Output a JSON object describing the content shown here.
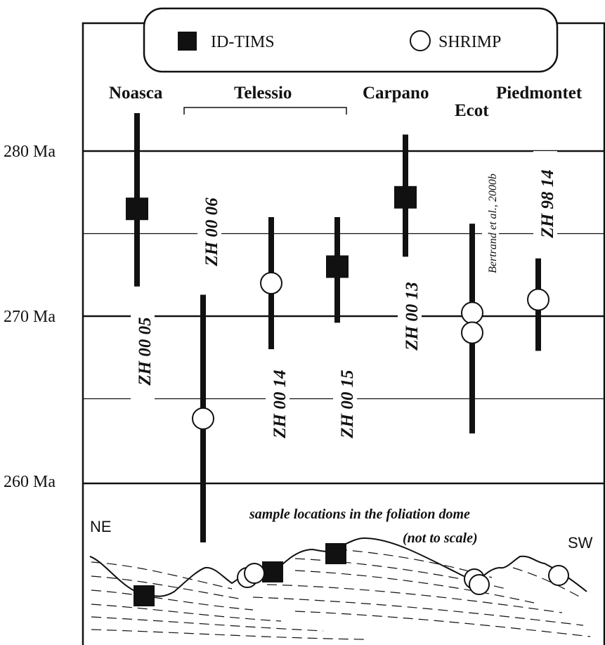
{
  "chart_data": {
    "type": "scatter",
    "title": "",
    "xlabel": "",
    "ylabel": "",
    "ylim": [
      260,
      282
    ],
    "yticks": [
      {
        "value": 280,
        "label": "280 Ma"
      },
      {
        "value": 270,
        "label": "270 Ma"
      },
      {
        "value": 260,
        "label": "260 Ma"
      }
    ],
    "grid": "horizontal lines at 265, 270, 275, 280 Ma",
    "legend": {
      "position": "top-center",
      "items": [
        {
          "name": "ID-TIMS",
          "marker": "filled-square"
        },
        {
          "name": "SHRIMP",
          "marker": "open-circle"
        }
      ]
    },
    "locations": [
      "Noasca",
      "Telessio",
      "Carpano",
      "Ecot",
      "Piedmontet"
    ],
    "series": [
      {
        "name": "ID-TIMS",
        "marker": "filled-square",
        "points": [
          {
            "sample": "ZH 00 05",
            "location": "Noasca",
            "age": 276.5,
            "low": 271.8,
            "high": 282.3
          },
          {
            "sample": "ZH 00 15",
            "location": "Telessio",
            "age": 273.0,
            "low": 269.6,
            "high": 276.0
          },
          {
            "sample": "ZH 00 13",
            "location": "Carpano",
            "age": 277.2,
            "low": 273.6,
            "high": 281.0
          }
        ]
      },
      {
        "name": "SHRIMP",
        "marker": "open-circle",
        "points": [
          {
            "sample": "ZH 00 06",
            "location": "Telessio",
            "age": 263.8,
            "low": 256.3,
            "high": 271.3
          },
          {
            "sample": "ZH 00 14",
            "location": "Telessio",
            "age": 272.0,
            "low": 268.0,
            "high": 276.0
          },
          {
            "sample": "Bertrand et al., 2000b",
            "location": "Ecot",
            "age": 270.2,
            "low": 262.9,
            "high": 275.6
          },
          {
            "sample": "Bertrand et al., 2000b",
            "location": "Ecot",
            "age": 269.0,
            "low": 262.9,
            "high": 275.6
          },
          {
            "sample": "ZH 98 14",
            "location": "Piedmontet",
            "age": 271.0,
            "low": 267.9,
            "high": 273.5
          }
        ]
      }
    ],
    "inset": {
      "note_line1": "sample locations in the foliation dome",
      "note_line2": "(not to scale)",
      "left_label": "NE",
      "right_label": "SW"
    }
  }
}
